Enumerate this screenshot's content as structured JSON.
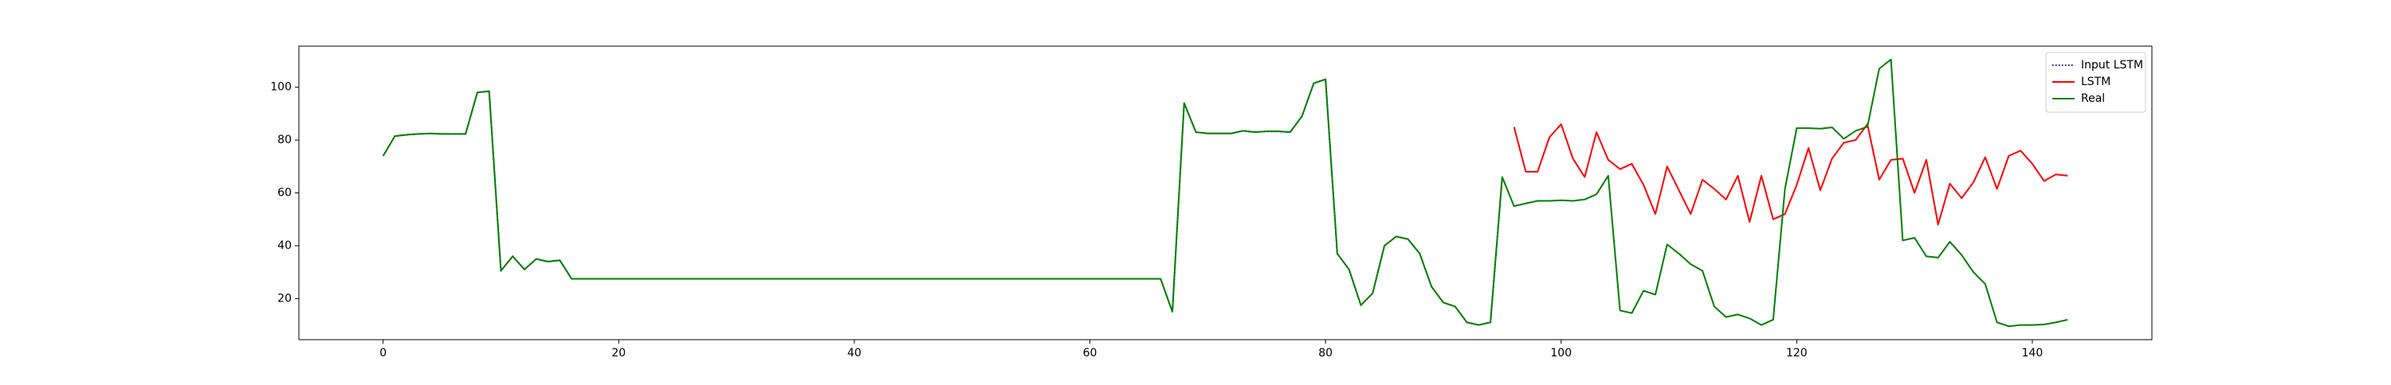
{
  "chart_data": {
    "type": "line",
    "x": [
      0,
      1,
      2,
      3,
      4,
      5,
      6,
      7,
      8,
      9,
      10,
      11,
      12,
      13,
      14,
      15,
      16,
      17,
      18,
      19,
      20,
      21,
      22,
      23,
      24,
      25,
      26,
      27,
      28,
      29,
      30,
      31,
      32,
      33,
      34,
      35,
      36,
      37,
      38,
      39,
      40,
      41,
      42,
      43,
      44,
      45,
      46,
      47,
      48,
      49,
      50,
      51,
      52,
      53,
      54,
      55,
      56,
      57,
      58,
      59,
      60,
      61,
      62,
      63,
      64,
      65,
      66,
      67,
      68,
      69,
      70,
      71,
      72,
      73,
      74,
      75,
      76,
      77,
      78,
      79,
      80,
      81,
      82,
      83,
      84,
      85,
      86,
      87,
      88,
      89,
      90,
      91,
      92,
      93,
      94,
      95,
      96,
      97,
      98,
      99,
      100,
      101,
      102,
      103,
      104,
      105,
      106,
      107,
      108,
      109,
      110,
      111,
      112,
      113,
      114,
      115,
      116,
      117,
      118,
      119,
      120,
      121,
      122,
      123,
      124,
      125,
      126,
      127,
      128,
      129,
      130,
      131,
      132,
      133,
      134,
      135,
      136,
      137,
      138,
      139,
      140,
      141,
      142,
      143
    ],
    "series": [
      {
        "name": "Input LSTM",
        "color": "#000080",
        "dash": "dotted",
        "values": [
          74,
          81.5,
          82,
          82.3,
          82.5,
          82.3,
          82.3,
          82.3,
          98,
          98.5,
          30.5,
          36,
          31,
          35,
          34,
          34.5,
          27.5,
          27.5,
          27.5,
          27.5,
          27.5,
          27.5,
          27.5,
          27.5,
          27.5,
          27.5,
          27.5,
          27.5,
          27.5,
          27.5,
          27.5,
          27.5,
          27.5,
          27.5,
          27.5,
          27.5,
          27.5,
          27.5,
          27.5,
          27.5,
          27.5,
          27.5,
          27.5,
          27.5,
          27.5,
          27.5,
          27.5,
          27.5,
          27.5,
          27.5,
          27.5,
          27.5,
          27.5,
          27.5,
          27.5,
          27.5,
          27.5,
          27.5,
          27.5,
          27.5,
          27.5,
          27.5,
          27.5,
          27.5,
          27.5,
          27.5,
          27.5,
          15,
          94,
          83,
          82.5,
          82.5,
          82.5,
          83.5,
          83,
          83.3,
          83.3,
          83,
          89,
          101.5,
          103,
          37,
          31,
          17.5,
          22,
          40,
          43.5,
          42.5,
          37,
          24.5,
          18.5,
          17,
          11,
          10,
          11,
          66,
          null,
          null,
          null,
          null,
          null,
          null,
          null,
          null,
          null,
          null,
          null,
          null,
          null,
          null,
          null,
          null,
          null,
          null,
          null,
          null,
          null,
          null,
          null,
          null,
          null,
          null,
          null,
          null,
          null,
          null,
          null,
          null,
          null,
          null,
          null,
          null,
          null,
          null,
          null,
          null,
          null,
          null,
          null,
          null,
          null,
          null,
          null,
          null
        ]
      },
      {
        "name": "LSTM",
        "color": "#ff0000",
        "dash": "solid",
        "values": [
          null,
          null,
          null,
          null,
          null,
          null,
          null,
          null,
          null,
          null,
          null,
          null,
          null,
          null,
          null,
          null,
          null,
          null,
          null,
          null,
          null,
          null,
          null,
          null,
          null,
          null,
          null,
          null,
          null,
          null,
          null,
          null,
          null,
          null,
          null,
          null,
          null,
          null,
          null,
          null,
          null,
          null,
          null,
          null,
          null,
          null,
          null,
          null,
          null,
          null,
          null,
          null,
          null,
          null,
          null,
          null,
          null,
          null,
          null,
          null,
          null,
          null,
          null,
          null,
          null,
          null,
          null,
          null,
          null,
          null,
          null,
          null,
          null,
          null,
          null,
          null,
          null,
          null,
          null,
          null,
          null,
          null,
          null,
          null,
          null,
          null,
          null,
          null,
          null,
          null,
          null,
          null,
          null,
          null,
          null,
          null,
          85,
          68,
          68,
          81,
          86,
          73,
          66,
          83,
          72.5,
          69,
          71,
          63,
          52,
          70,
          61,
          52,
          65,
          61.5,
          57.5,
          66.5,
          49,
          66.5,
          50,
          52,
          63,
          77,
          61,
          73,
          79,
          80,
          86,
          65,
          72.5,
          73,
          60,
          72.5,
          48,
          63.5,
          58,
          64,
          73.5,
          61.5,
          74,
          76,
          71,
          64.5,
          67,
          66.5
        ]
      },
      {
        "name": "Real",
        "color": "#008000",
        "dash": "solid",
        "values": [
          74,
          81.5,
          82,
          82.3,
          82.5,
          82.3,
          82.3,
          82.3,
          98,
          98.5,
          30.5,
          36,
          31,
          35,
          34,
          34.5,
          27.5,
          27.5,
          27.5,
          27.5,
          27.5,
          27.5,
          27.5,
          27.5,
          27.5,
          27.5,
          27.5,
          27.5,
          27.5,
          27.5,
          27.5,
          27.5,
          27.5,
          27.5,
          27.5,
          27.5,
          27.5,
          27.5,
          27.5,
          27.5,
          27.5,
          27.5,
          27.5,
          27.5,
          27.5,
          27.5,
          27.5,
          27.5,
          27.5,
          27.5,
          27.5,
          27.5,
          27.5,
          27.5,
          27.5,
          27.5,
          27.5,
          27.5,
          27.5,
          27.5,
          27.5,
          27.5,
          27.5,
          27.5,
          27.5,
          27.5,
          27.5,
          15,
          94,
          83,
          82.5,
          82.5,
          82.5,
          83.5,
          83,
          83.3,
          83.3,
          83,
          89,
          101.5,
          103,
          37,
          31,
          17.5,
          22,
          40,
          43.5,
          42.5,
          37,
          24.5,
          18.5,
          17,
          11,
          10,
          11,
          66,
          55,
          56,
          57,
          57,
          57.2,
          57,
          57.5,
          59.5,
          66.5,
          15.5,
          14.5,
          23,
          21.5,
          40.5,
          37,
          33,
          30.5,
          17,
          13,
          14,
          12.5,
          10,
          12,
          61.5,
          84.5,
          84.5,
          84.3,
          84.8,
          80.5,
          83.5,
          85,
          107,
          110.5,
          42,
          43,
          36,
          35.5,
          41.5,
          36.5,
          30,
          25.5,
          11,
          9.5,
          10,
          10,
          10.2,
          11,
          12
        ]
      }
    ],
    "xlim": [
      -7.15,
      150.15
    ],
    "ylim": [
      4.45,
      115.55
    ],
    "xticks": [
      0,
      20,
      40,
      60,
      80,
      100,
      120,
      140
    ],
    "yticks": [
      20,
      40,
      60,
      80,
      100
    ],
    "legend": "upper right"
  }
}
